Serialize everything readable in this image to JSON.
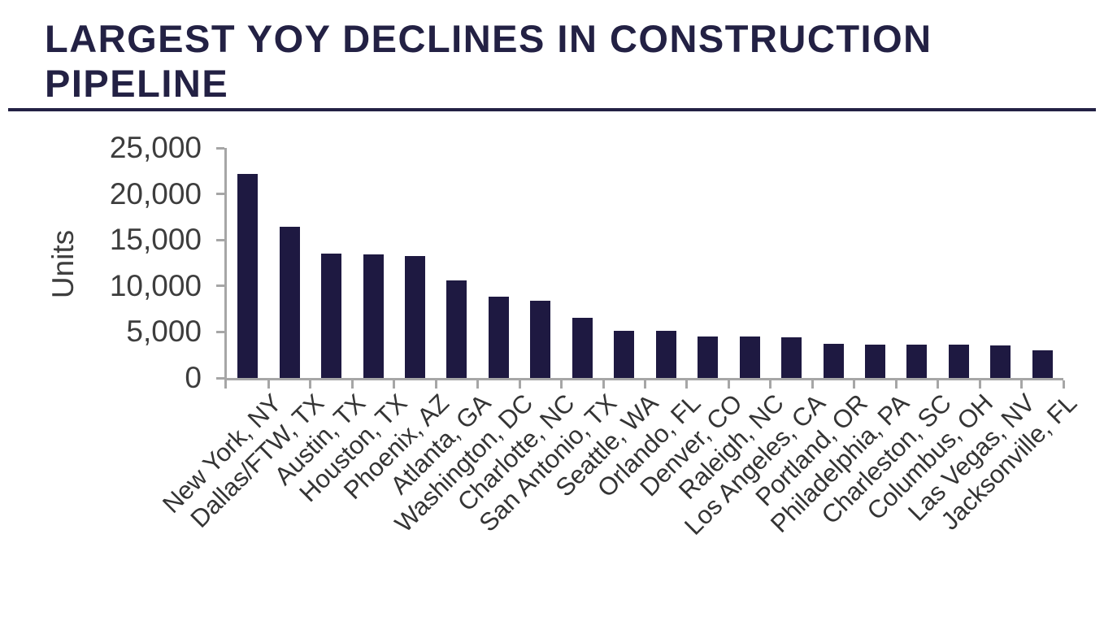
{
  "header": {
    "title_line1": "LARGEST YOY DECLINES IN CONSTRUCTION",
    "title_line2": "PIPELINE"
  },
  "chart_data": {
    "type": "bar",
    "title": "LARGEST YOY DECLINES IN CONSTRUCTION PIPELINE",
    "xlabel": "",
    "ylabel": "Units",
    "ylim": [
      0,
      25000
    ],
    "ytick_interval": 5000,
    "ytick_labels": [
      "0",
      "5,000",
      "10,000",
      "15,000",
      "20,000",
      "25,000"
    ],
    "grid": false,
    "legend": false,
    "categories": [
      "New York, NY",
      "Dallas/FTW, TX",
      "Austin, TX",
      "Houston, TX",
      "Phoenix, AZ",
      "Atlanta, GA",
      "Washington, DC",
      "Charlotte, NC",
      "San Antonio, TX",
      "Seattle, WA",
      "Orlando, FL",
      "Denver, CO",
      "Raleigh, NC",
      "Los Angeles, CA",
      "Portland, OR",
      "Philadelphia, PA",
      "Charleston, SC",
      "Columbus, OH",
      "Las Vegas, NV",
      "Jacksonville, FL"
    ],
    "values": [
      22200,
      16400,
      13550,
      13450,
      13250,
      10600,
      8800,
      8400,
      6550,
      5150,
      5100,
      4500,
      4500,
      4450,
      3750,
      3650,
      3650,
      3600,
      3550,
      3000
    ]
  },
  "colors": {
    "title": "#232144",
    "bar": "#1e1941",
    "axis_line": "#a6a6a6",
    "tick_text": "#3d3d3d"
  }
}
